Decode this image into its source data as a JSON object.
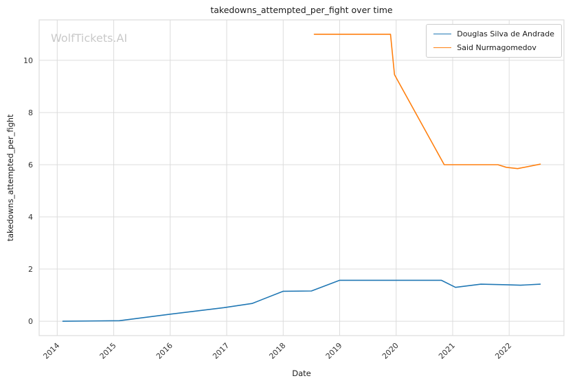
{
  "chart_data": {
    "type": "line",
    "title": "takedowns_attempted_per_fight over time",
    "xlabel": "Date",
    "ylabel": "takedowns_attempted_per_fight",
    "watermark": "WolfTickets.AI",
    "grid": true,
    "grid_color": "#dcdcdc",
    "tick_color": "#333333",
    "legend_position": "upper right",
    "xlim": [
      2013.68,
      2022.97
    ],
    "ylim": [
      -0.55,
      11.55
    ],
    "xticks": [
      2014,
      2015,
      2016,
      2017,
      2018,
      2019,
      2020,
      2021,
      2022
    ],
    "yticks": [
      0,
      2,
      4,
      6,
      8,
      10
    ],
    "series": [
      {
        "name": "Douglas Silva de Andrade",
        "color": "#1f77b4",
        "points": [
          [
            2014.1,
            0.0
          ],
          [
            2015.1,
            0.02
          ],
          [
            2016.0,
            0.27
          ],
          [
            2016.95,
            0.52
          ],
          [
            2017.45,
            0.68
          ],
          [
            2018.0,
            1.15
          ],
          [
            2018.5,
            1.16
          ],
          [
            2019.0,
            1.57
          ],
          [
            2019.5,
            1.57
          ],
          [
            2020.0,
            1.57
          ],
          [
            2020.8,
            1.57
          ],
          [
            2021.05,
            1.3
          ],
          [
            2021.5,
            1.42
          ],
          [
            2021.95,
            1.4
          ],
          [
            2022.2,
            1.38
          ],
          [
            2022.55,
            1.42
          ]
        ]
      },
      {
        "name": "Said Nurmagomedov",
        "color": "#ff7f0e",
        "points": [
          [
            2018.55,
            11.0
          ],
          [
            2019.3,
            11.0
          ],
          [
            2019.9,
            11.0
          ],
          [
            2019.97,
            9.45
          ],
          [
            2020.85,
            6.0
          ],
          [
            2021.4,
            6.0
          ],
          [
            2021.8,
            6.0
          ],
          [
            2021.95,
            5.9
          ],
          [
            2022.15,
            5.85
          ],
          [
            2022.55,
            6.02
          ]
        ]
      }
    ]
  }
}
